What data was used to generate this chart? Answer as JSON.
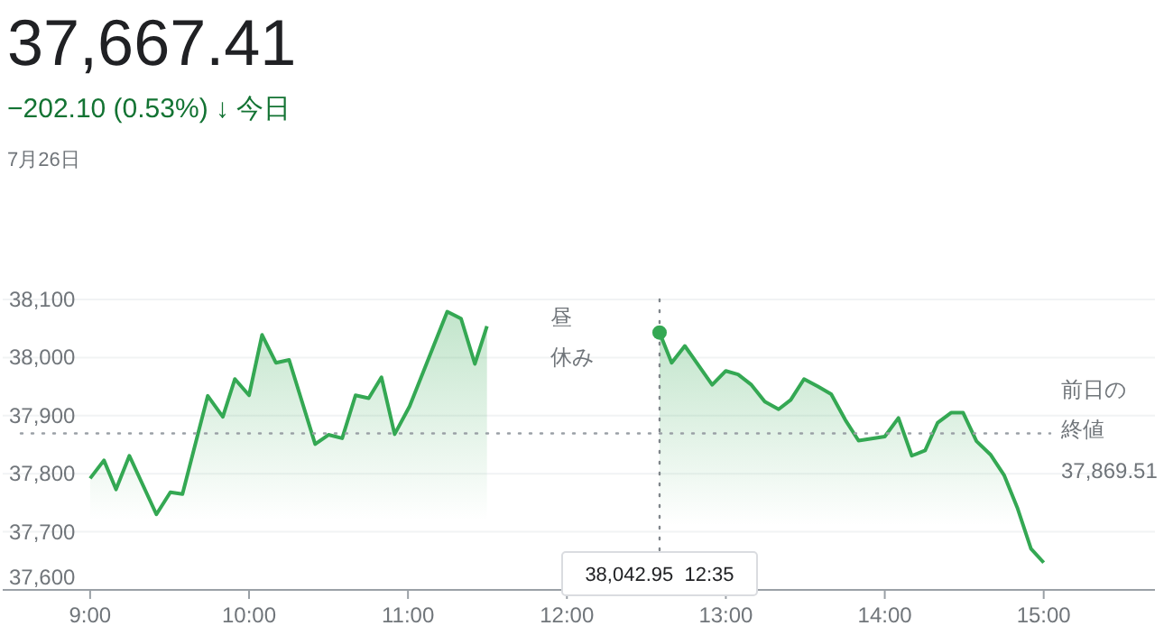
{
  "chart_data": {
    "type": "area",
    "title": "37,667.41",
    "subtitle": "−202.10 (0.53%) ↓ 今日",
    "annotations": [
      "7月26日",
      "昼休み",
      "37,869.51",
      "38,042.95  12:35"
    ],
    "xlim": [
      8.45,
      15.7
    ],
    "ylim": [
      37600,
      38100
    ],
    "xticks": [
      {
        "value": 9,
        "label": "9:00"
      },
      {
        "value": 10,
        "label": "10:00"
      },
      {
        "value": 11,
        "label": "11:00"
      },
      {
        "value": 12,
        "label": "12:00"
      },
      {
        "value": 13,
        "label": "13:00"
      },
      {
        "value": 14,
        "label": "14:00"
      },
      {
        "value": 15,
        "label": "15:00"
      }
    ],
    "yticks": [
      {
        "value": 37600,
        "label": "37,600"
      },
      {
        "value": 37700,
        "label": "37,700"
      },
      {
        "value": 37800,
        "label": "37,800"
      },
      {
        "value": 37900,
        "label": "37,900"
      },
      {
        "value": 38000,
        "label": "38,000"
      },
      {
        "value": 38100,
        "label": "38,100"
      }
    ],
    "grid": "y",
    "marker": "none",
    "line_style": "solid",
    "series": [
      {
        "color": "#34a853",
        "x": [
          9.0,
          9.087,
          9.163,
          9.247,
          9.417,
          9.505,
          9.581,
          9.74,
          9.835,
          9.911,
          10.0,
          10.082,
          10.169,
          10.252,
          10.416,
          10.5,
          10.586,
          10.67,
          10.753,
          10.833,
          10.916,
          11.01,
          11.247,
          11.334,
          11.421,
          11.497
        ],
        "values": [
          37792,
          37823,
          37773,
          37831,
          37730,
          37768,
          37765,
          37934,
          37898,
          37963,
          37935,
          38039,
          37991,
          37996,
          37851,
          37867,
          37861,
          37935,
          37930,
          37966,
          37868,
          37916,
          38079,
          38067,
          37989,
          38054
        ]
      },
      {
        "color": "#34a853",
        "x": [
          12.583,
          12.659,
          12.742,
          12.914,
          13.0,
          13.077,
          13.161,
          13.245,
          13.332,
          13.408,
          13.492,
          13.58,
          13.663,
          13.751,
          13.835,
          14.0,
          14.086,
          14.17,
          14.254,
          14.333,
          14.417,
          14.493,
          14.577,
          14.665,
          14.752,
          14.836,
          14.92,
          15.0
        ],
        "values": [
          38043,
          37991,
          38020,
          37953,
          37977,
          37971,
          37953,
          37924,
          37911,
          37927,
          37963,
          37950,
          37937,
          37893,
          37857,
          37864,
          37896,
          37831,
          37840,
          37888,
          37905,
          37905,
          37856,
          37833,
          37797,
          37740,
          37671,
          37647
        ]
      }
    ],
    "ref_lines": [
      {
        "axis": "y",
        "value": 37869.51,
        "label": "前日の終値",
        "line_style": "dotted",
        "color": "#9aa0a6"
      },
      {
        "axis": "x",
        "value": 12.583,
        "line_style": "dotted",
        "color": "#80868b"
      }
    ]
  }
}
